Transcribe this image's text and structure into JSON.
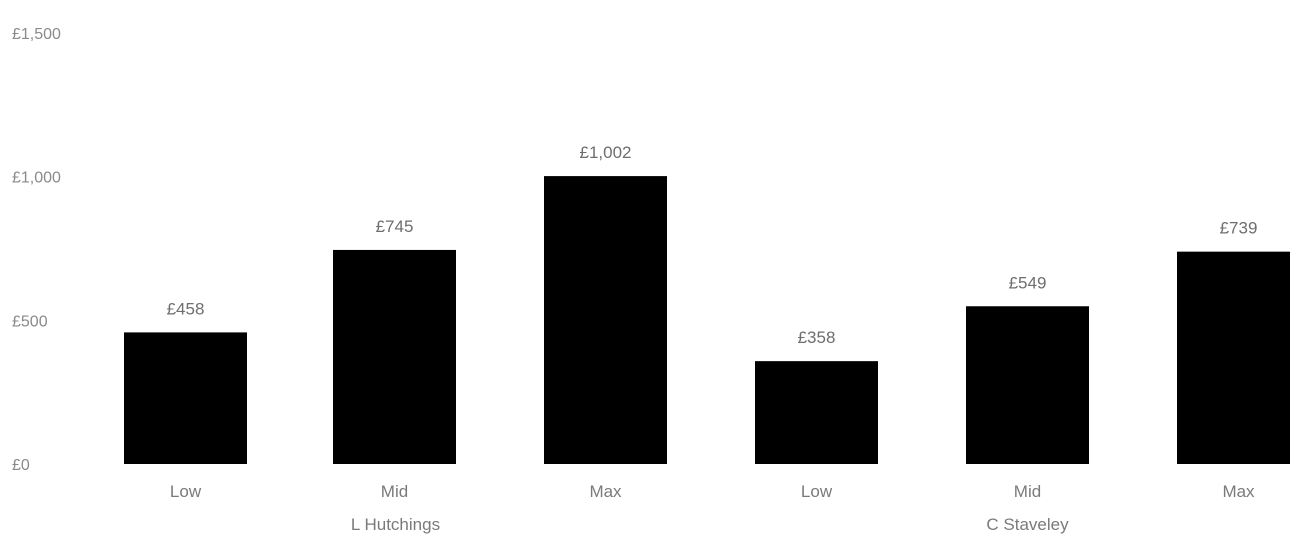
{
  "chart_data": {
    "type": "bar",
    "title": "",
    "xlabel": "",
    "ylabel": "",
    "ylim": [
      0,
      1500
    ],
    "yticks": [
      0,
      500,
      1000,
      1500
    ],
    "ytick_labels": [
      "£0",
      "£500",
      "£1,000",
      "£1,500"
    ],
    "groups": [
      {
        "name": "L Hutchings",
        "categories": [
          "Low",
          "Mid",
          "Max"
        ],
        "values": [
          458,
          745,
          1002
        ],
        "value_labels": [
          "£458",
          "£745",
          "£1,002"
        ]
      },
      {
        "name": "C Staveley",
        "categories": [
          "Low",
          "Mid",
          "Max"
        ],
        "values": [
          358,
          549,
          739
        ],
        "value_labels": [
          "£358",
          "£549",
          "£739"
        ]
      }
    ],
    "grid": false,
    "legend": "none",
    "bar_color": "#000000"
  }
}
